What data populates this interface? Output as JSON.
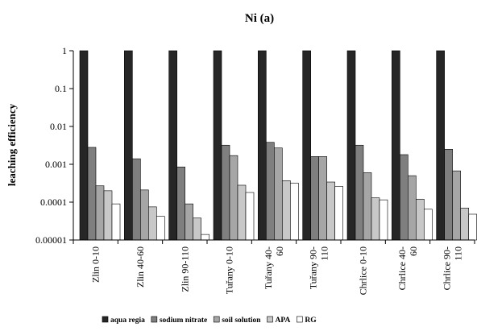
{
  "chart_data": {
    "type": "bar",
    "title": "Ni (a)",
    "xlabel": "",
    "ylabel": "leaching efficiency",
    "y_scale": "log",
    "ylim": [
      1e-05,
      1
    ],
    "y_ticks": [
      "1",
      "0.1",
      "0.01",
      "0.001",
      "0.0001",
      "0.00001"
    ],
    "grid": false,
    "legend_position": "bottom",
    "categories": [
      [
        "Zlin 0-10"
      ],
      [
        "Zlin 40-60"
      ],
      [
        "Zlin 90-110"
      ],
      [
        "Tuřany 0-10"
      ],
      [
        "Tuřany 40-",
        "60"
      ],
      [
        "Tuřany 90-",
        "110"
      ],
      [
        "Chrlice 0-10"
      ],
      [
        "Chrlice 40-",
        "60"
      ],
      [
        "Chrlice 90-",
        "110"
      ]
    ],
    "series": [
      {
        "name": "aqua regia",
        "color": "#262626",
        "values": [
          1,
          1,
          1,
          1,
          1,
          1,
          1,
          1,
          1
        ]
      },
      {
        "name": "sodium nitrate",
        "color": "#7f7f7f",
        "values": [
          0.0028,
          0.0014,
          0.00085,
          0.0032,
          0.0038,
          0.0016,
          0.0032,
          0.0018,
          0.0025
        ]
      },
      {
        "name": "soil solution",
        "color": "#a6a6a6",
        "values": [
          0.00027,
          0.00021,
          9e-05,
          0.0017,
          0.0027,
          0.0016,
          0.0006,
          0.0005,
          0.00067
        ]
      },
      {
        "name": "APA",
        "color": "#c8c8c8",
        "values": [
          0.0002,
          7.5e-05,
          3.8e-05,
          0.00028,
          0.00037,
          0.00034,
          0.00013,
          0.00012,
          7e-05
        ]
      },
      {
        "name": "RG",
        "color": "#ffffff",
        "values": [
          9e-05,
          4.2e-05,
          1.4e-05,
          0.00018,
          0.00032,
          0.00026,
          0.000115,
          6.5e-05,
          4.8e-05
        ]
      }
    ]
  }
}
